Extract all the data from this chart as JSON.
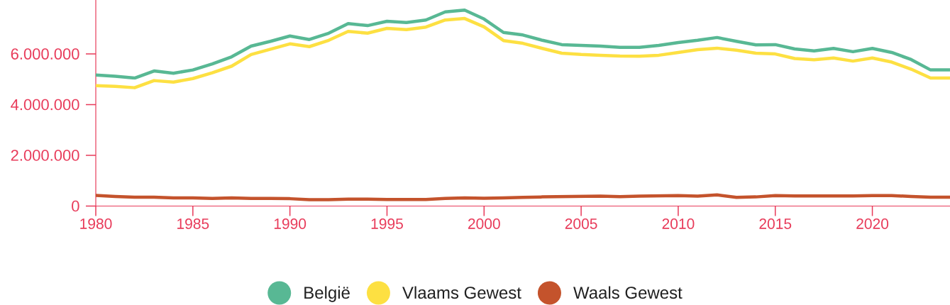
{
  "chart_data": {
    "type": "line",
    "x": [
      1980,
      1981,
      1982,
      1983,
      1984,
      1985,
      1986,
      1987,
      1988,
      1989,
      1990,
      1991,
      1992,
      1993,
      1994,
      1995,
      1996,
      1997,
      1998,
      1999,
      2000,
      2001,
      2002,
      2003,
      2004,
      2005,
      2006,
      2007,
      2008,
      2009,
      2010,
      2011,
      2012,
      2013,
      2014,
      2015,
      2016,
      2017,
      2018,
      2019,
      2020,
      2021,
      2022,
      2023,
      2024
    ],
    "series": [
      {
        "name": "België",
        "color": "#58b894",
        "values": [
          5170000,
          5120000,
          5050000,
          5330000,
          5240000,
          5370000,
          5610000,
          5890000,
          6310000,
          6500000,
          6710000,
          6570000,
          6820000,
          7200000,
          7120000,
          7290000,
          7240000,
          7340000,
          7660000,
          7730000,
          7380000,
          6850000,
          6750000,
          6540000,
          6370000,
          6340000,
          6310000,
          6260000,
          6260000,
          6340000,
          6450000,
          6540000,
          6650000,
          6500000,
          6360000,
          6370000,
          6200000,
          6120000,
          6220000,
          6090000,
          6220000,
          6060000,
          5780000,
          5370000,
          5370000
        ]
      },
      {
        "name": "Vlaams Gewest",
        "color": "#fde042",
        "values": [
          4750000,
          4720000,
          4670000,
          4950000,
          4890000,
          5030000,
          5260000,
          5520000,
          5980000,
          6190000,
          6400000,
          6290000,
          6540000,
          6890000,
          6820000,
          7010000,
          6960000,
          7060000,
          7340000,
          7400000,
          7070000,
          6530000,
          6420000,
          6220000,
          6030000,
          5980000,
          5950000,
          5920000,
          5910000,
          5950000,
          6060000,
          6170000,
          6230000,
          6150000,
          6030000,
          6000000,
          5820000,
          5770000,
          5840000,
          5720000,
          5840000,
          5680000,
          5400000,
          5050000,
          5050000
        ]
      },
      {
        "name": "Waals Gewest",
        "color": "#c4532c",
        "values": [
          420000,
          380000,
          350000,
          350000,
          320000,
          320000,
          300000,
          320000,
          300000,
          300000,
          290000,
          250000,
          250000,
          270000,
          270000,
          260000,
          260000,
          260000,
          300000,
          320000,
          310000,
          320000,
          340000,
          360000,
          370000,
          380000,
          390000,
          370000,
          390000,
          400000,
          410000,
          390000,
          440000,
          340000,
          360000,
          410000,
          400000,
          400000,
          400000,
          400000,
          410000,
          410000,
          380000,
          350000,
          350000
        ]
      }
    ],
    "xlim": [
      1980,
      2024
    ],
    "ylim": [
      0,
      8130000
    ],
    "xticks": [
      1980,
      1985,
      1990,
      1995,
      2000,
      2005,
      2010,
      2015,
      2020
    ],
    "yticks": [
      0,
      {
        "value": 2000000,
        "label": "2.000.000"
      },
      {
        "value": 4000000,
        "label": "4.000.000"
      },
      {
        "value": 6000000,
        "label": "6.000.000"
      }
    ],
    "legend": "bottom",
    "line_style": "solid"
  }
}
